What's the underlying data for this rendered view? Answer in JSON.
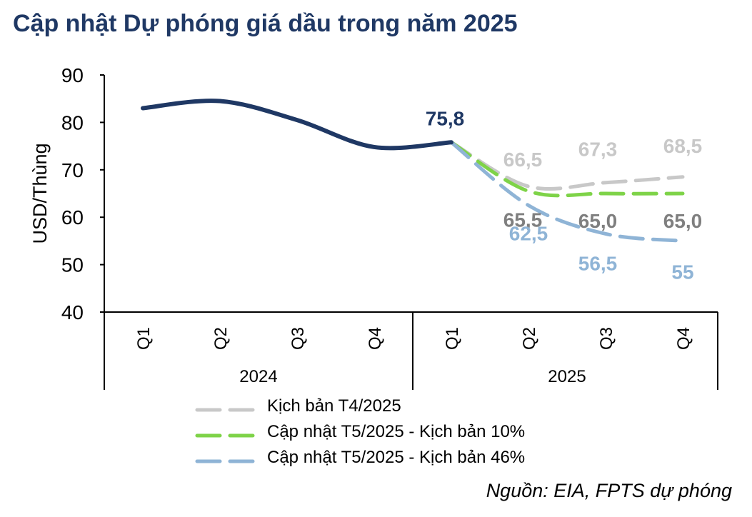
{
  "chart_data": {
    "type": "line",
    "title": "Cập nhật Dự phóng giá dầu trong năm 2025",
    "ylabel": "USD/Thùng",
    "ylim": [
      40,
      90
    ],
    "yticks": [
      "90",
      "80",
      "70",
      "60",
      "50",
      "40"
    ],
    "grid": false,
    "legend_position": "bottom-left",
    "categories": [
      "Q1",
      "Q2",
      "Q3",
      "Q4",
      "Q1",
      "Q2",
      "Q3",
      "Q4"
    ],
    "groups": [
      {
        "label": "2024",
        "span": [
          0,
          3
        ]
      },
      {
        "label": "2025",
        "span": [
          4,
          7
        ]
      }
    ],
    "series": [
      {
        "key": "actual",
        "color": "#1f3864",
        "dashed": false,
        "values": [
          83.0,
          84.5,
          80.5,
          74.8,
          75.8,
          null,
          null,
          null
        ],
        "labels": [
          null,
          null,
          null,
          null,
          "75,8",
          null,
          null,
          null
        ]
      },
      {
        "key": "t4",
        "name": "Kịch bản T4/2025",
        "color": "#c8c8c8",
        "dashed": true,
        "values": [
          null,
          null,
          null,
          null,
          75.8,
          66.5,
          67.3,
          68.5
        ],
        "labels": [
          null,
          null,
          null,
          null,
          null,
          "66,5",
          "67,3",
          "68,5"
        ]
      },
      {
        "key": "t5_10",
        "name": "Cập nhật T5/2025 - Kịch bản 10%",
        "color": "#7ed348",
        "dashed": true,
        "values": [
          null,
          null,
          null,
          null,
          75.8,
          65.5,
          65.0,
          65.0
        ],
        "labels": [
          null,
          null,
          null,
          null,
          null,
          "65,5",
          "65,0",
          "65,0"
        ]
      },
      {
        "key": "t5_46",
        "name": "Cập nhật T5/2025 - Kịch bản 46%",
        "color": "#8fb4d6",
        "dashed": true,
        "values": [
          null,
          null,
          null,
          null,
          75.8,
          62.5,
          56.5,
          55.0
        ],
        "labels": [
          null,
          null,
          null,
          null,
          null,
          "62,5",
          "56,5",
          "55"
        ]
      }
    ]
  },
  "source_note": "Nguồn: EIA, FPTS dự phóng"
}
